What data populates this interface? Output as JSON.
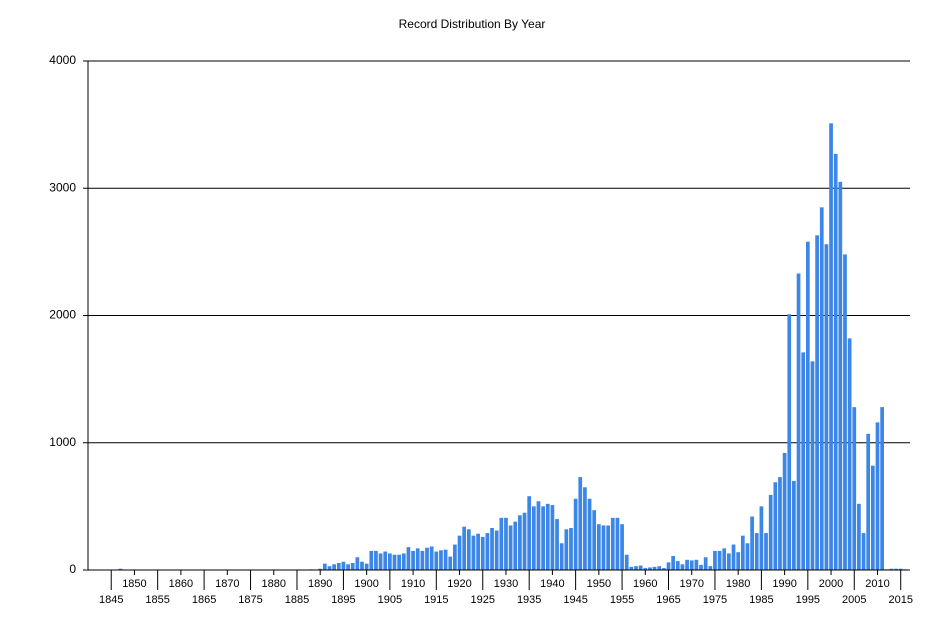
{
  "chart_data": {
    "type": "bar",
    "title": "Record Distribution By Year",
    "x": [
      1840,
      1847,
      1888,
      1890,
      1891,
      1892,
      1893,
      1894,
      1895,
      1896,
      1897,
      1898,
      1899,
      1900,
      1901,
      1902,
      1903,
      1904,
      1905,
      1906,
      1907,
      1908,
      1909,
      1910,
      1911,
      1912,
      1913,
      1914,
      1915,
      1916,
      1917,
      1918,
      1919,
      1920,
      1921,
      1922,
      1923,
      1924,
      1925,
      1926,
      1927,
      1928,
      1929,
      1930,
      1931,
      1932,
      1933,
      1934,
      1935,
      1936,
      1937,
      1938,
      1939,
      1940,
      1941,
      1942,
      1943,
      1944,
      1945,
      1946,
      1947,
      1948,
      1949,
      1950,
      1951,
      1952,
      1953,
      1954,
      1955,
      1956,
      1957,
      1958,
      1959,
      1960,
      1961,
      1962,
      1963,
      1964,
      1965,
      1966,
      1967,
      1968,
      1969,
      1970,
      1971,
      1972,
      1973,
      1974,
      1975,
      1976,
      1977,
      1978,
      1979,
      1980,
      1981,
      1982,
      1983,
      1984,
      1985,
      1986,
      1987,
      1988,
      1989,
      1990,
      1991,
      1992,
      1993,
      1994,
      1995,
      1996,
      1997,
      1998,
      1999,
      2000,
      2001,
      2002,
      2003,
      2004,
      2005,
      2006,
      2007,
      2008,
      2009,
      2010,
      2011,
      2012,
      2013,
      2014,
      2015,
      2016
    ],
    "values": [
      5,
      10,
      5,
      10,
      50,
      30,
      45,
      55,
      65,
      45,
      55,
      100,
      65,
      50,
      150,
      150,
      130,
      145,
      130,
      120,
      120,
      130,
      180,
      150,
      170,
      150,
      175,
      185,
      145,
      155,
      160,
      105,
      200,
      270,
      340,
      320,
      270,
      285,
      260,
      290,
      330,
      310,
      410,
      410,
      350,
      380,
      430,
      450,
      580,
      500,
      540,
      500,
      520,
      510,
      400,
      210,
      320,
      330,
      560,
      730,
      650,
      560,
      470,
      360,
      350,
      350,
      410,
      410,
      360,
      120,
      25,
      30,
      35,
      15,
      20,
      25,
      30,
      15,
      60,
      110,
      70,
      45,
      80,
      75,
      80,
      40,
      100,
      30,
      150,
      150,
      170,
      130,
      200,
      140,
      270,
      210,
      420,
      290,
      500,
      290,
      590,
      690,
      730,
      920,
      2010,
      700,
      2330,
      1710,
      2580,
      1640,
      2630,
      2850,
      2560,
      3510,
      3270,
      3050,
      2480,
      1820,
      1280,
      520,
      290,
      1070,
      820,
      1160,
      1280,
      5,
      10,
      10,
      10,
      5
    ],
    "color": "#3b86e6",
    "xlim": [
      1840,
      2017
    ],
    "xticks": [
      1845,
      1850,
      1855,
      1860,
      1865,
      1870,
      1875,
      1880,
      1885,
      1890,
      1895,
      1900,
      1905,
      1910,
      1915,
      1920,
      1925,
      1930,
      1935,
      1940,
      1945,
      1950,
      1955,
      1960,
      1965,
      1970,
      1975,
      1980,
      1985,
      1990,
      1995,
      2000,
      2005,
      2010,
      2015
    ],
    "ylim": [
      0,
      4000
    ],
    "yticks": [
      0,
      1000,
      2000,
      3000,
      4000
    ],
    "grid": true
  }
}
